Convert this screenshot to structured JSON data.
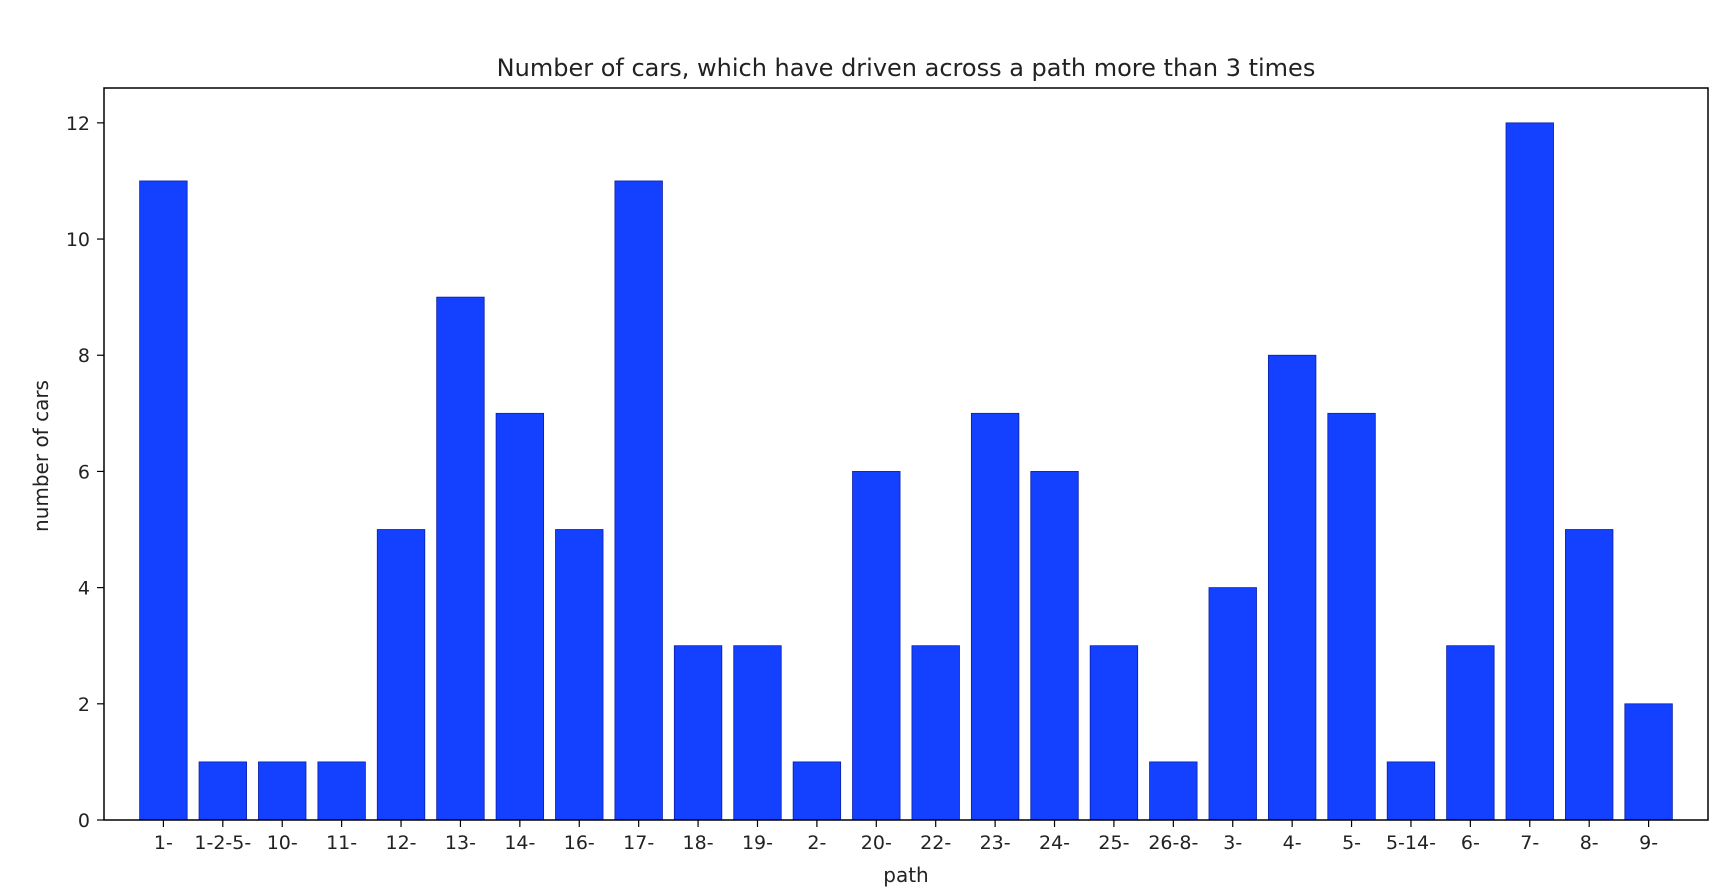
{
  "chart_data": {
    "type": "bar",
    "title": "Number of cars, which have driven across a path more than 3 times",
    "xlabel": "path",
    "ylabel": "number of cars",
    "categories": [
      "1-",
      "1-2-5-",
      "10-",
      "11-",
      "12-",
      "13-",
      "14-",
      "16-",
      "17-",
      "18-",
      "19-",
      "2-",
      "20-",
      "22-",
      "23-",
      "24-",
      "25-",
      "26-8-",
      "3-",
      "4-",
      "5-",
      "5-14-",
      "6-",
      "7-",
      "8-",
      "9-"
    ],
    "values": [
      11,
      1,
      1,
      1,
      5,
      9,
      7,
      5,
      11,
      3,
      3,
      1,
      6,
      3,
      7,
      6,
      3,
      1,
      4,
      8,
      7,
      1,
      3,
      12,
      5,
      2
    ],
    "ylim": [
      0,
      12.6
    ],
    "yticks": [
      0,
      2,
      4,
      6,
      8,
      10,
      12
    ],
    "grid": false,
    "bar_color": "#1440ff",
    "bar_edge_color": "#0a1fa8"
  }
}
